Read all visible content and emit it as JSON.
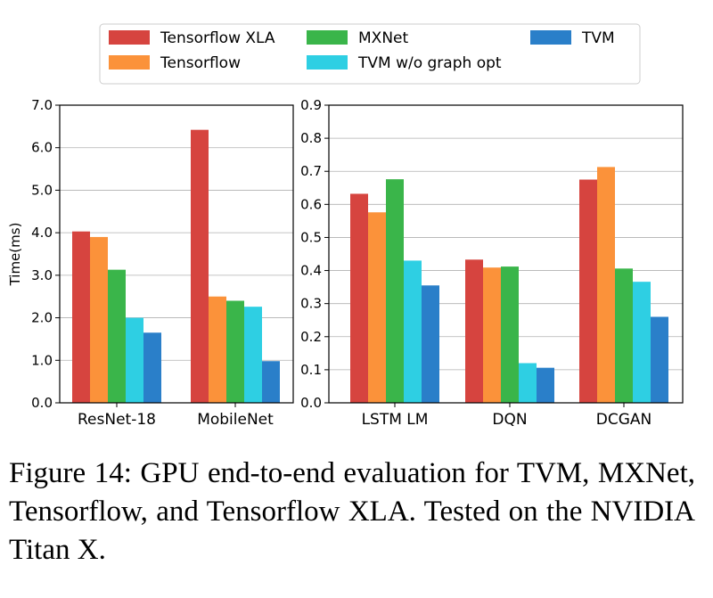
{
  "legend": {
    "placement": "top-center",
    "items": [
      {
        "label": "Tensorflow XLA",
        "color": "#d6443f"
      },
      {
        "label": "MXNet",
        "color": "#3ab54a"
      },
      {
        "label": "TVM",
        "color": "#2a7fc9"
      },
      {
        "label": "Tensorflow",
        "color": "#fb923a"
      },
      {
        "label": "TVM w/o graph opt",
        "color": "#2ecfe3"
      }
    ]
  },
  "chart_data": [
    {
      "type": "bar",
      "ylabel": "Time(ms)",
      "xlabel": "",
      "title": "",
      "ylim": [
        0,
        7.0
      ],
      "yticks": [
        "0.0",
        "1.0",
        "2.0",
        "3.0",
        "4.0",
        "5.0",
        "6.0",
        "7.0"
      ],
      "grid": "horizontal",
      "categories": [
        "ResNet-18",
        "MobileNet"
      ],
      "series": [
        {
          "name": "Tensorflow XLA",
          "color": "#d6443f",
          "values": [
            4.03,
            6.42
          ]
        },
        {
          "name": "Tensorflow",
          "color": "#fb923a",
          "values": [
            3.9,
            2.5
          ]
        },
        {
          "name": "MXNet",
          "color": "#3ab54a",
          "values": [
            3.13,
            2.4
          ]
        },
        {
          "name": "TVM w/o graph opt",
          "color": "#2ecfe3",
          "values": [
            2.0,
            2.26
          ]
        },
        {
          "name": "TVM",
          "color": "#2a7fc9",
          "values": [
            1.65,
            0.98
          ]
        }
      ]
    },
    {
      "type": "bar",
      "ylabel": "",
      "xlabel": "",
      "title": "",
      "ylim": [
        0,
        0.9
      ],
      "yticks": [
        "0.0",
        "0.1",
        "0.2",
        "0.3",
        "0.4",
        "0.5",
        "0.6",
        "0.7",
        "0.8",
        "0.9"
      ],
      "grid": "horizontal",
      "categories": [
        "LSTM LM",
        "DQN",
        "DCGAN"
      ],
      "series": [
        {
          "name": "Tensorflow XLA",
          "color": "#d6443f",
          "values": [
            0.632,
            0.433,
            0.675
          ]
        },
        {
          "name": "Tensorflow",
          "color": "#fb923a",
          "values": [
            0.576,
            0.409,
            0.713
          ]
        },
        {
          "name": "MXNet",
          "color": "#3ab54a",
          "values": [
            0.676,
            0.412,
            0.406
          ]
        },
        {
          "name": "TVM w/o graph opt",
          "color": "#2ecfe3",
          "values": [
            0.43,
            0.12,
            0.366
          ]
        },
        {
          "name": "TVM",
          "color": "#2a7fc9",
          "values": [
            0.355,
            0.106,
            0.26
          ]
        }
      ]
    }
  ],
  "caption": "Figure 14:  GPU end-to-end evaluation for TVM, MXNet, Tensorflow, and Tensorflow XLA. Tested on the NVIDIA Titan X."
}
